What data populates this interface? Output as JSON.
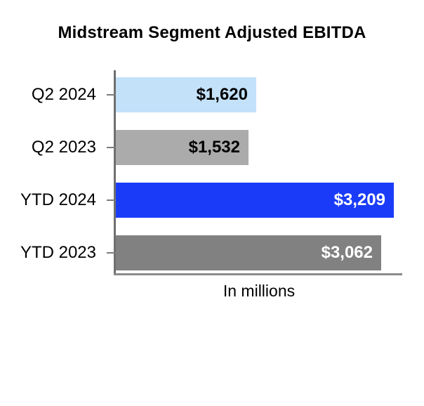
{
  "title": "Midstream Segment Adjusted EBITDA",
  "chart_data": {
    "type": "bar",
    "orientation": "horizontal",
    "title": "Midstream Segment Adjusted EBITDA",
    "xlabel": "In millions",
    "grid": false,
    "legend": false,
    "xlim": [
      0,
      3300
    ],
    "categories": [
      "Q2 2024",
      "Q2 2023",
      "YTD 2024",
      "YTD 2023"
    ],
    "values": [
      1620,
      1532,
      3209,
      3062
    ],
    "bars": [
      {
        "category": "Q2 2024",
        "value": 1620,
        "value_label": "$1,620",
        "fill": "#C3E1F9",
        "label_color": "#000000"
      },
      {
        "category": "Q2 2023",
        "value": 1532,
        "value_label": "$1,532",
        "fill": "#ABABAB",
        "label_color": "#000000"
      },
      {
        "category": "YTD 2024",
        "value": 3209,
        "value_label": "$3,209",
        "fill": "#1A3CF8",
        "label_color": "#FFFFFF"
      },
      {
        "category": "YTD 2023",
        "value": 3062,
        "value_label": "$3,062",
        "fill": "#818181",
        "label_color": "#FFFFFF"
      }
    ],
    "colors": {
      "axis": "#7b7b7b"
    }
  }
}
